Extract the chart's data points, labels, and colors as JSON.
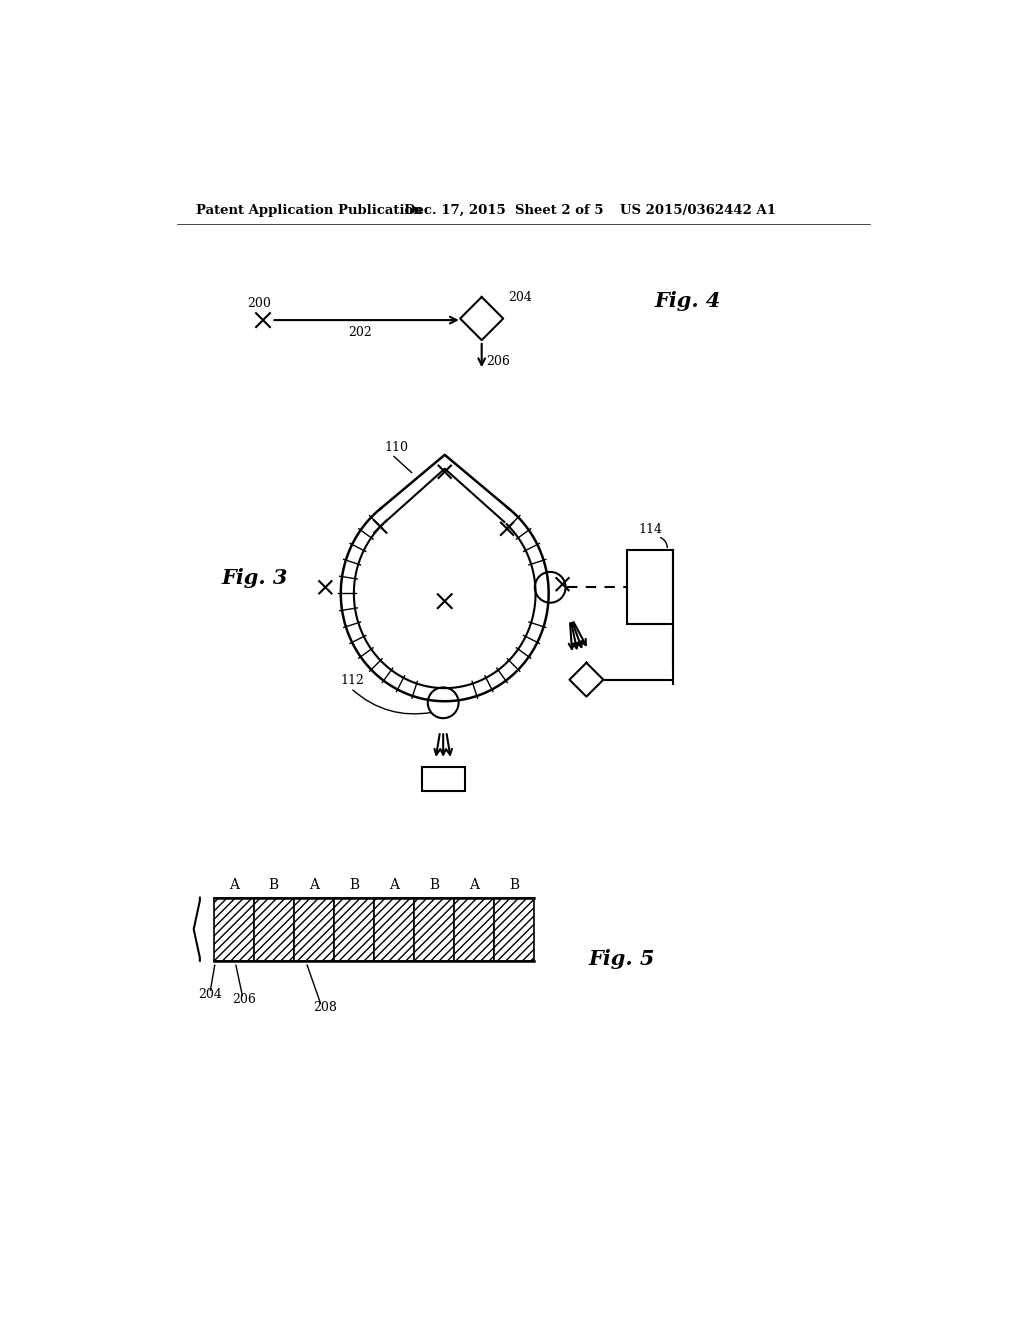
{
  "bg_color": "#ffffff",
  "text_color": "#000000",
  "line_color": "#000000",
  "header_left": "Patent Application Publication",
  "header_mid": "Dec. 17, 2015  Sheet 2 of 5",
  "header_right": "US 2015/0362442 A1",
  "fig4_label": "Fig. 4",
  "fig3_label": "Fig. 3",
  "fig5_label": "Fig. 5"
}
